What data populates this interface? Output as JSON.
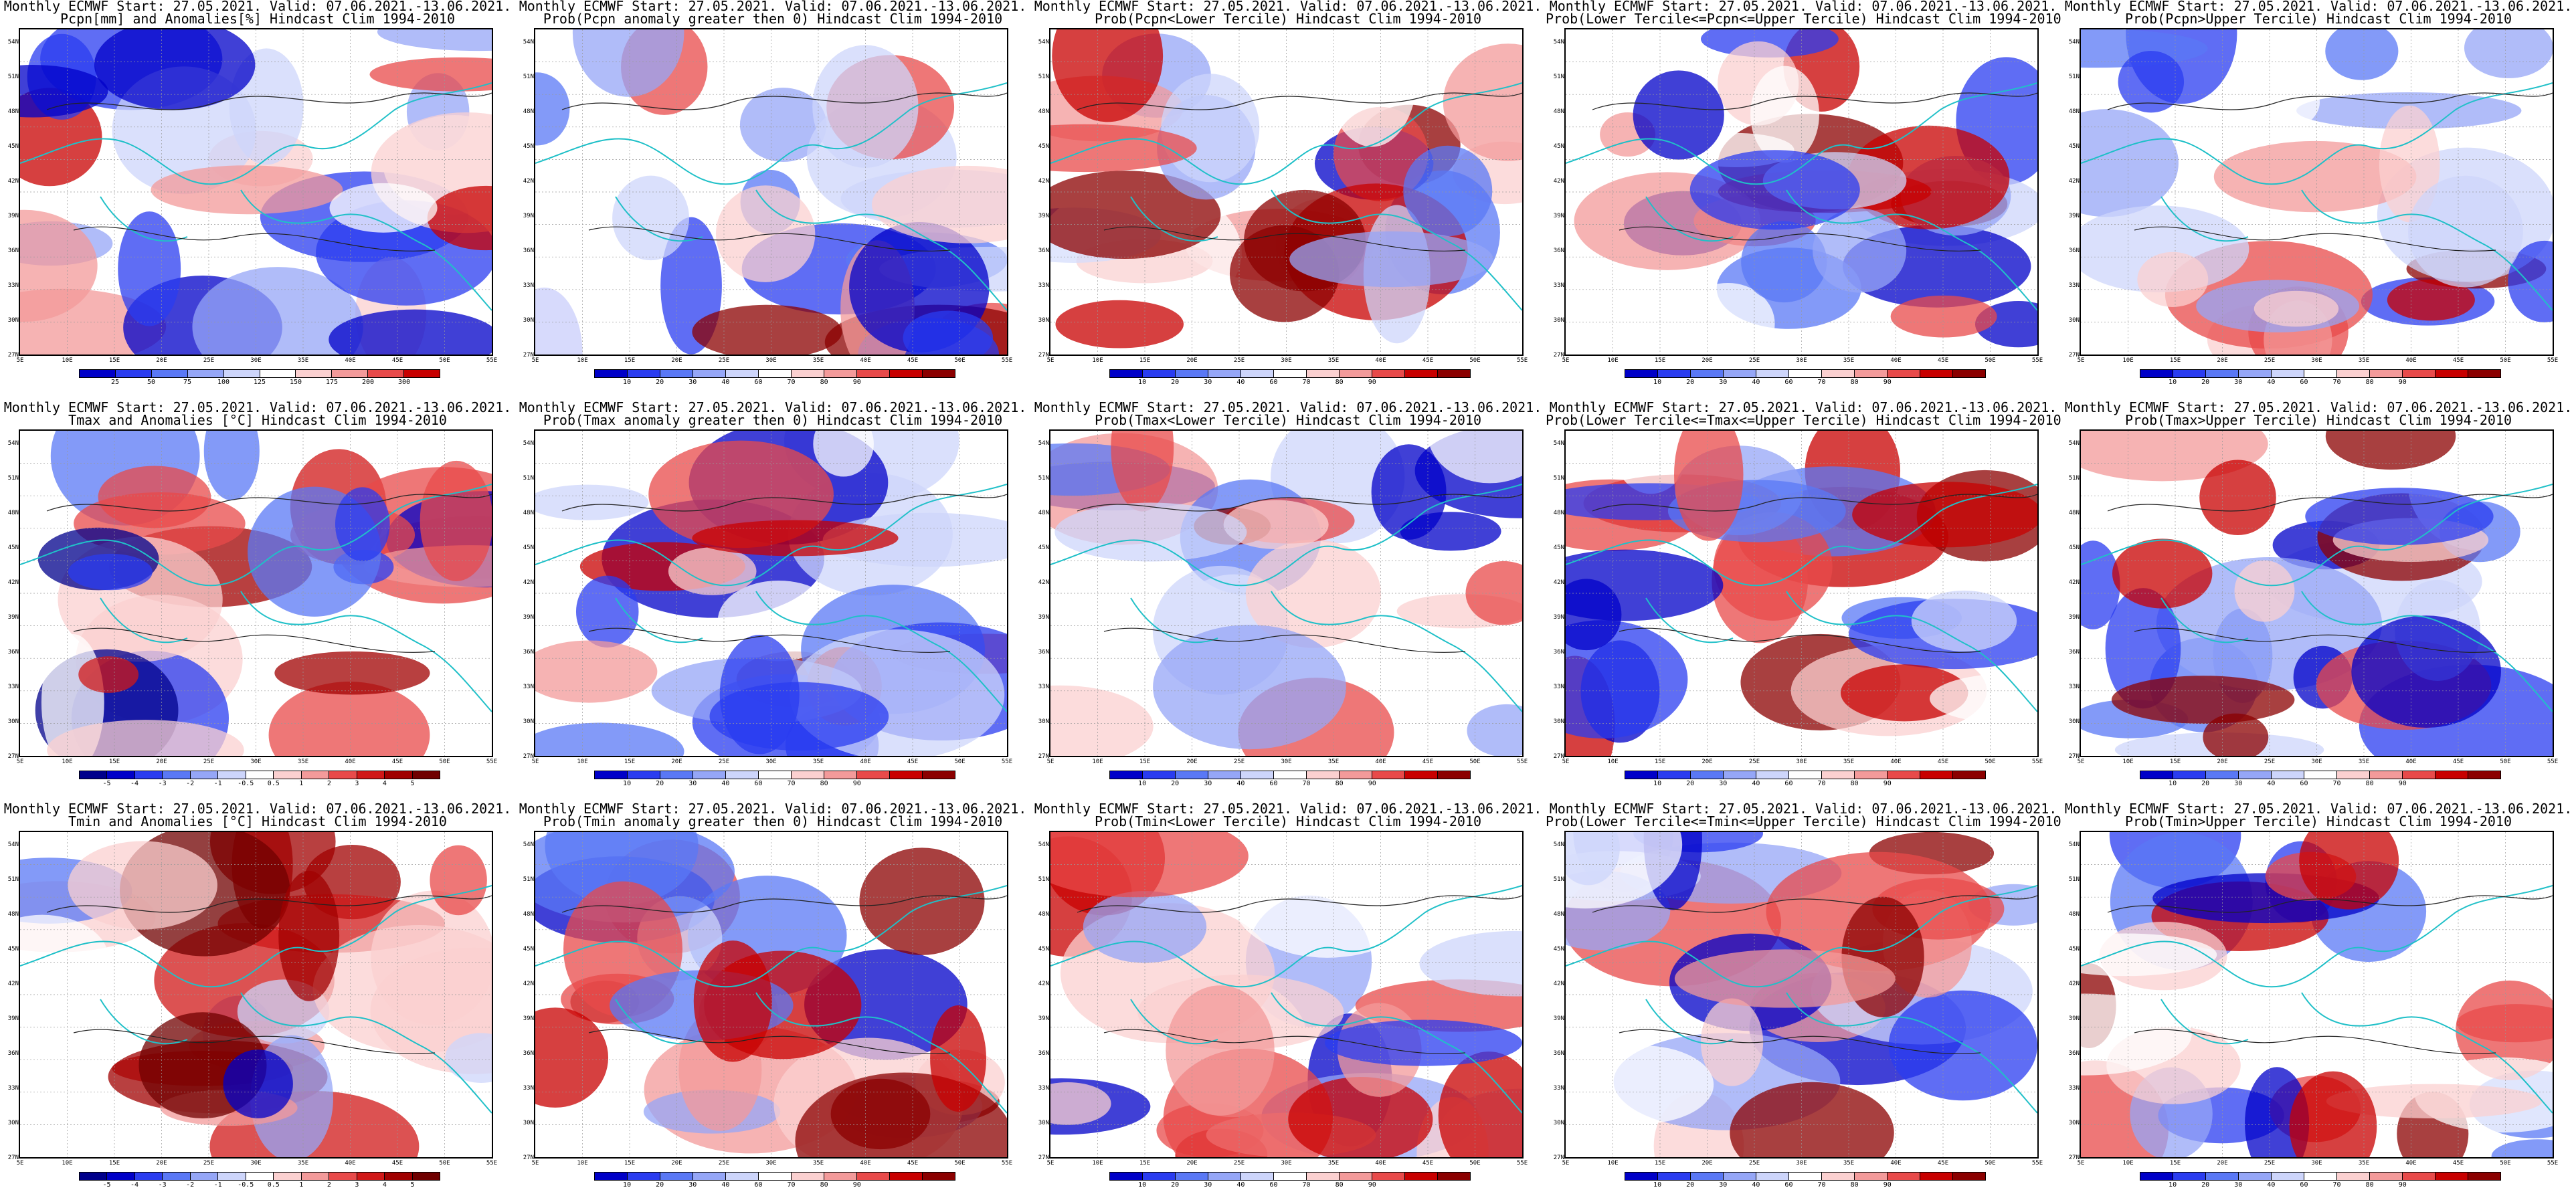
{
  "panels": [
    {
      "title_line1": "Monthly ECMWF Start: 27.05.2021. Valid: 07.06.2021.-13.06.2021.",
      "title_line2": "Pcpn[mm] and Anomalies[%] Hindcast Clim 1994-2010",
      "variable": "precipitation-anomaly",
      "scale": "pcpn-anomaly"
    },
    {
      "title_line1": "Monthly ECMWF Start: 27.05.2021. Valid: 07.06.2021.-13.06.2021.",
      "title_line2": "Prob(Pcpn anomaly greater then 0) Hindcast Clim 1994-2010",
      "variable": "precipitation-probability",
      "scale": "probability"
    },
    {
      "title_line1": "Monthly ECMWF Start: 27.05.2021. Valid: 07.06.2021.-13.06.2021.",
      "title_line2": "Prob(Pcpn<Lower Tercile) Hindcast Clim 1994-2010",
      "variable": "precipitation-lower-tercile",
      "scale": "probability"
    },
    {
      "title_line1": "Monthly ECMWF Start: 27.05.2021. Valid: 07.06.2021.-13.06.2021.",
      "title_line2": "Prob(Lower Tercile<=Pcpn<=Upper Tercile) Hindcast Clim 1994-2010",
      "variable": "precipitation-middle-tercile",
      "scale": "probability"
    },
    {
      "title_line1": "Monthly ECMWF Start: 27.05.2021. Valid: 07.06.2021.-13.06.2021.",
      "title_line2": "Prob(Pcpn>Upper Tercile) Hindcast Clim 1994-2010",
      "variable": "precipitation-upper-tercile",
      "scale": "probability"
    },
    {
      "title_line1": "Monthly ECMWF Start: 27.05.2021. Valid: 07.06.2021.-13.06.2021.",
      "title_line2": "Tmax and Anomalies [°C] Hindcast Clim 1994-2010",
      "variable": "tmax-anomaly",
      "scale": "temp-anomaly"
    },
    {
      "title_line1": "Monthly ECMWF Start: 27.05.2021. Valid: 07.06.2021.-13.06.2021.",
      "title_line2": "Prob(Tmax anomaly greater then 0) Hindcast Clim 1994-2010",
      "variable": "tmax-probability",
      "scale": "probability"
    },
    {
      "title_line1": "Monthly ECMWF Start: 27.05.2021. Valid: 07.06.2021.-13.06.2021.",
      "title_line2": "Prob(Tmax<Lower Tercile) Hindcast Clim 1994-2010",
      "variable": "tmax-lower-tercile",
      "scale": "probability"
    },
    {
      "title_line1": "Monthly ECMWF Start: 27.05.2021. Valid: 07.06.2021.-13.06.2021.",
      "title_line2": "Prob(Lower Tercile<=Tmax<=Upper Tercile) Hindcast Clim 1994-2010",
      "variable": "tmax-middle-tercile",
      "scale": "probability"
    },
    {
      "title_line1": "Monthly ECMWF Start: 27.05.2021. Valid: 07.06.2021.-13.06.2021.",
      "title_line2": "Prob(Tmax>Upper Tercile) Hindcast Clim 1994-2010",
      "variable": "tmax-upper-tercile",
      "scale": "probability"
    },
    {
      "title_line1": "Monthly ECMWF Start: 27.05.2021. Valid: 07.06.2021.-13.06.2021.",
      "title_line2": "Tmin and Anomalies [°C] Hindcast Clim 1994-2010",
      "variable": "tmin-anomaly",
      "scale": "temp-anomaly"
    },
    {
      "title_line1": "Monthly ECMWF Start: 27.05.2021. Valid: 07.06.2021.-13.06.2021.",
      "title_line2": "Prob(Tmin anomaly greater then 0) Hindcast Clim 1994-2010",
      "variable": "tmin-probability",
      "scale": "probability"
    },
    {
      "title_line1": "Monthly ECMWF Start: 27.05.2021. Valid: 07.06.2021.-13.06.2021.",
      "title_line2": "Prob(Tmin<Lower Tercile) Hindcast Clim 1994-2010",
      "variable": "tmin-lower-tercile",
      "scale": "probability"
    },
    {
      "title_line1": "Monthly ECMWF Start: 27.05.2021. Valid: 07.06.2021.-13.06.2021.",
      "title_line2": "Prob(Lower Tercile<=Tmin<=Upper Tercile) Hindcast Clim 1994-2010",
      "variable": "tmin-middle-tercile",
      "scale": "probability"
    },
    {
      "title_line1": "Monthly ECMWF Start: 27.05.2021. Valid: 07.06.2021.-13.06.2021.",
      "title_line2": "Prob(Tmin>Upper Tercile) Hindcast Clim 1994-2010",
      "variable": "tmin-upper-tercile",
      "scale": "probability"
    }
  ],
  "axes": {
    "lat_labels": [
      "54N",
      "51N",
      "48N",
      "45N",
      "42N",
      "39N",
      "36N",
      "33N",
      "30N",
      "27N"
    ],
    "lon_labels": [
      "5E",
      "10E",
      "15E",
      "20E",
      "25E",
      "30E",
      "35E",
      "40E",
      "45E",
      "50E",
      "55E"
    ]
  },
  "scales": {
    "probability": {
      "ticks": [
        "10",
        "20",
        "30",
        "40",
        "60",
        "70",
        "80",
        "90"
      ],
      "colors": [
        "#0000c8",
        "#2a3cf0",
        "#5a78f5",
        "#95a6f7",
        "#cdd5fb",
        "#ffffff",
        "#fbd0d0",
        "#f39a9a",
        "#e84a4a",
        "#c80000",
        "#8b0000"
      ]
    },
    "temp-anomaly": {
      "ticks": [
        "-5",
        "-4",
        "-3",
        "-2",
        "-1",
        "-0.5",
        "0.5",
        "1",
        "2",
        "3",
        "4",
        "5"
      ],
      "colors": [
        "#00008b",
        "#0000c8",
        "#2a3cf0",
        "#5a78f5",
        "#95a6f7",
        "#cdd5fb",
        "#ffffff",
        "#fbd0d0",
        "#f39a9a",
        "#e84a4a",
        "#d01818",
        "#a00000",
        "#700000"
      ]
    },
    "pcpn-anomaly": {
      "ticks": [
        "25",
        "50",
        "75",
        "100",
        "125",
        "150",
        "175",
        "200",
        "300"
      ],
      "colors": [
        "#0000c8",
        "#2a3cf0",
        "#5a78f5",
        "#95a6f7",
        "#cdd5fb",
        "#ffffff",
        "#fbd0d0",
        "#f39a9a",
        "#e84a4a",
        "#c80000"
      ]
    }
  },
  "colors": {
    "coastline": "#20c0c8",
    "contour": "#222222",
    "deep_blue": "#0000a0",
    "deep_red": "#a00000"
  }
}
